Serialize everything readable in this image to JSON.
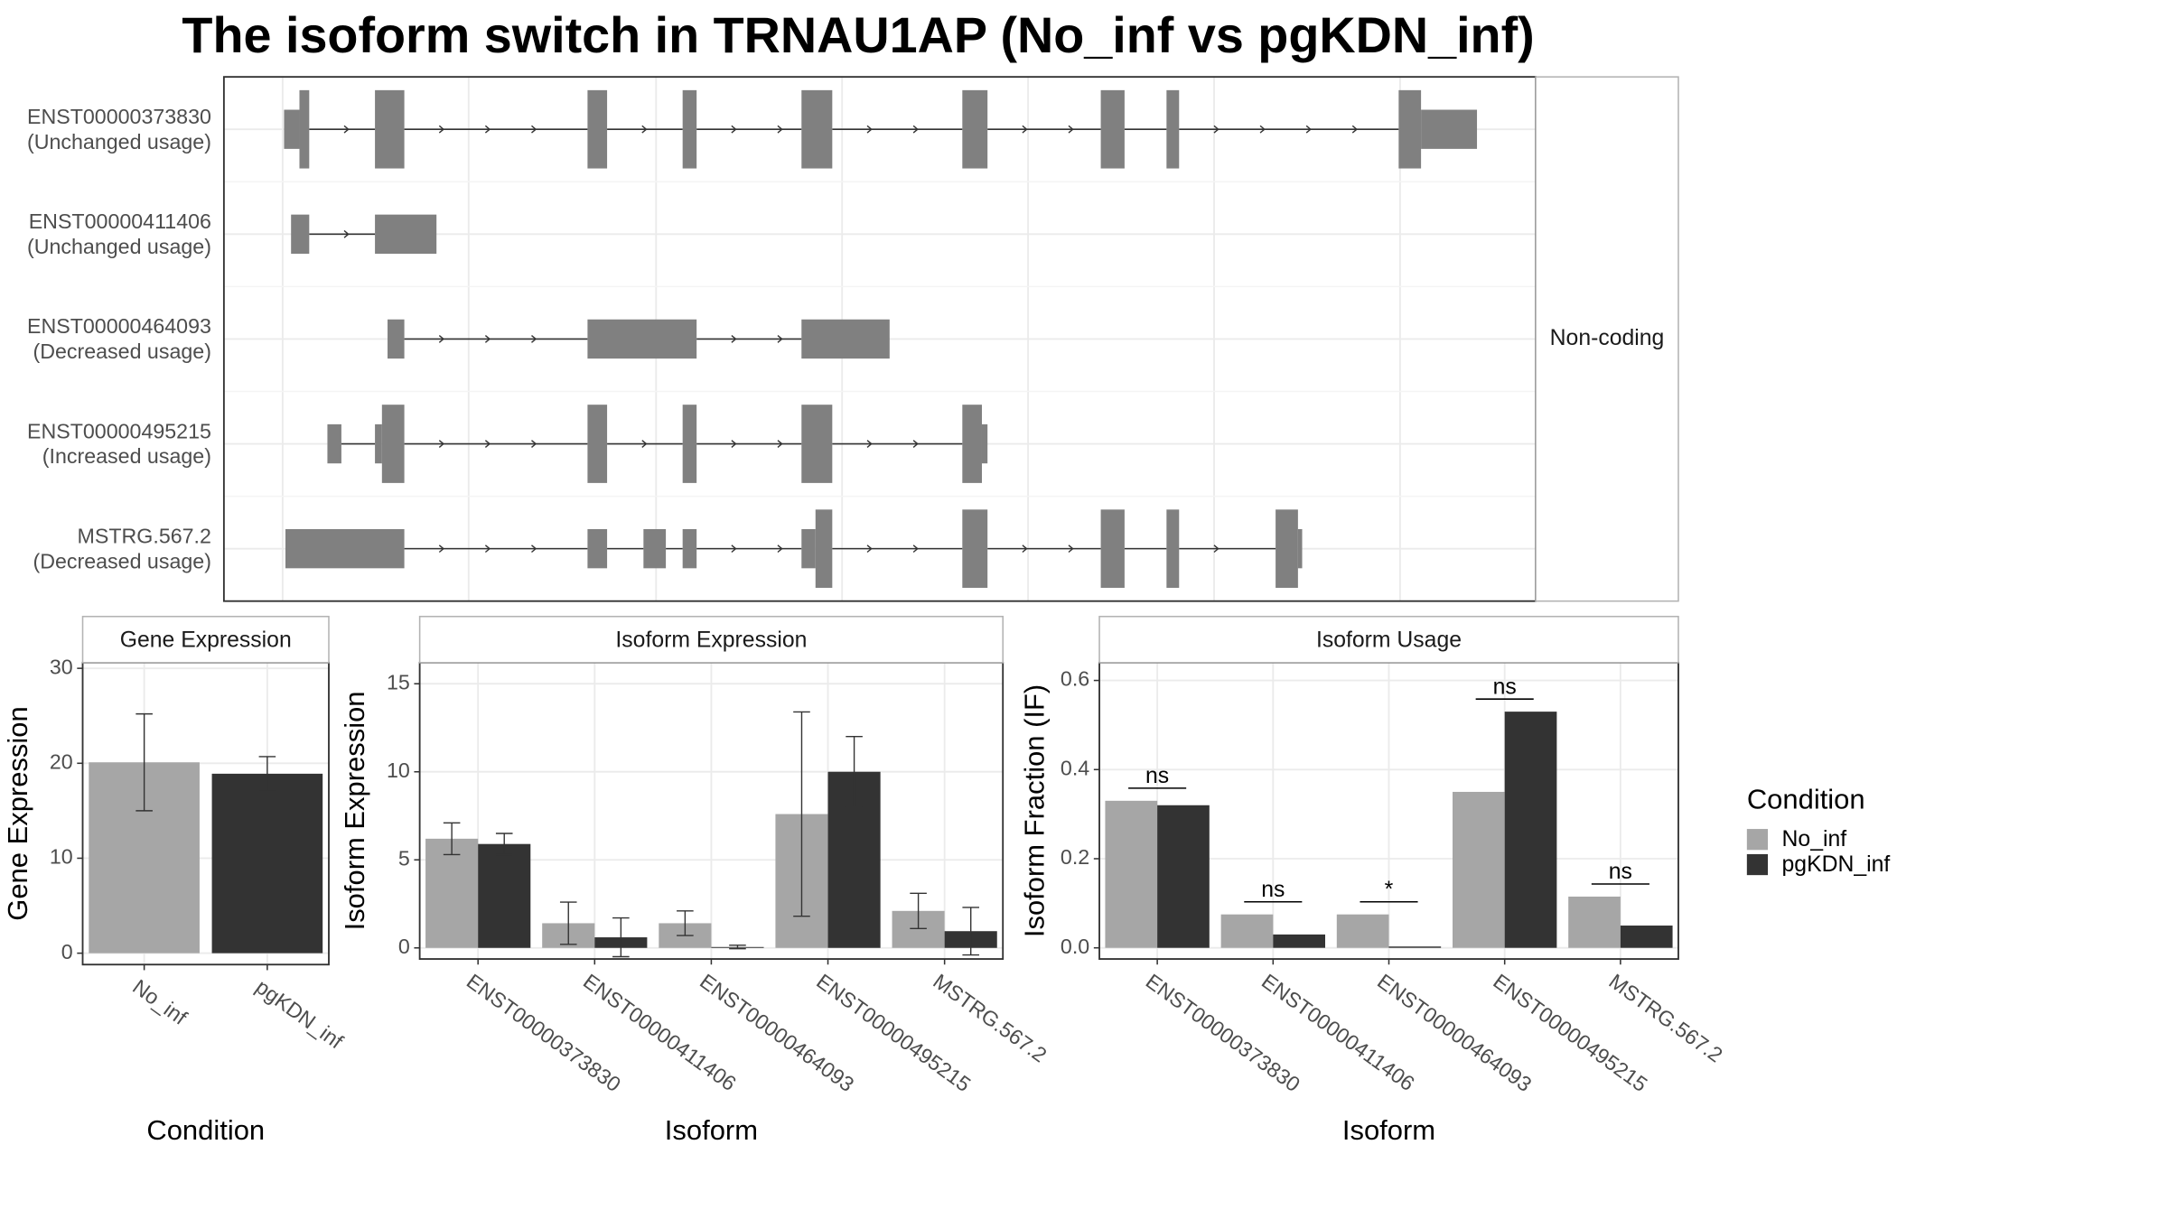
{
  "title": "The isoform switch in TRNAU1AP (No_inf vs pgKDN_inf)",
  "chart_data": [
    {
      "type": "transcripts",
      "strip": "Non-coding",
      "transcripts": [
        {
          "name": "ENST00000373830",
          "label": "(Unchanged usage)",
          "exons": [
            {
              "start": 43,
              "end": 54,
              "coding": false
            },
            {
              "start": 54,
              "end": 61,
              "coding": true
            },
            {
              "start": 108,
              "end": 129,
              "coding": true
            },
            {
              "start": 260,
              "end": 274,
              "coding": true
            },
            {
              "start": 328,
              "end": 338,
              "coding": true
            },
            {
              "start": 413,
              "end": 435,
              "coding": true
            },
            {
              "start": 528,
              "end": 546,
              "coding": true
            },
            {
              "start": 627,
              "end": 644,
              "coding": true
            },
            {
              "start": 674,
              "end": 683,
              "coding": true
            },
            {
              "start": 840,
              "end": 856,
              "coding": true
            },
            {
              "start": 856,
              "end": 896,
              "coding": false
            }
          ]
        },
        {
          "name": "ENST00000411406",
          "label": "(Unchanged usage)",
          "exons": [
            {
              "start": 48,
              "end": 61,
              "coding": false
            },
            {
              "start": 108,
              "end": 152,
              "coding": false
            }
          ]
        },
        {
          "name": "ENST00000464093",
          "label": "(Decreased usage)",
          "exons": [
            {
              "start": 117,
              "end": 129,
              "coding": false
            },
            {
              "start": 260,
              "end": 338,
              "coding": false
            },
            {
              "start": 413,
              "end": 476,
              "coding": false
            }
          ]
        },
        {
          "name": "ENST00000495215",
          "label": "(Increased usage)",
          "exons": [
            {
              "start": 74,
              "end": 84,
              "coding": false
            },
            {
              "start": 108,
              "end": 113,
              "coding": false
            },
            {
              "start": 113,
              "end": 129,
              "coding": true
            },
            {
              "start": 260,
              "end": 274,
              "coding": true
            },
            {
              "start": 328,
              "end": 338,
              "coding": true
            },
            {
              "start": 413,
              "end": 435,
              "coding": true
            },
            {
              "start": 528,
              "end": 542,
              "coding": true
            },
            {
              "start": 542,
              "end": 546,
              "coding": false
            }
          ]
        },
        {
          "name": "MSTRG.567.2",
          "label": "(Decreased usage)",
          "exons": [
            {
              "start": 44,
              "end": 129,
              "coding": false
            },
            {
              "start": 260,
              "end": 274,
              "coding": false
            },
            {
              "start": 300,
              "end": 316,
              "coding": false
            },
            {
              "start": 328,
              "end": 338,
              "coding": false
            },
            {
              "start": 413,
              "end": 423,
              "coding": false
            },
            {
              "start": 423,
              "end": 435,
              "coding": true
            },
            {
              "start": 528,
              "end": 546,
              "coding": true
            },
            {
              "start": 627,
              "end": 644,
              "coding": true
            },
            {
              "start": 674,
              "end": 683,
              "coding": true
            },
            {
              "start": 752,
              "end": 768,
              "coding": true
            },
            {
              "start": 768,
              "end": 771,
              "coding": false
            }
          ]
        }
      ]
    },
    {
      "type": "bar",
      "strip": "Gene Expression",
      "xlabel": "Condition",
      "ylabel": "Gene Expression",
      "categories": [
        "No_inf",
        "pgKDN_inf"
      ],
      "values": [
        20.1,
        18.9
      ],
      "errors": [
        5.1,
        1.8
      ],
      "colors": [
        "#a6a6a6",
        "#333333"
      ],
      "ylim": [
        -1.2,
        30.6
      ],
      "yticks": [
        0,
        10,
        20,
        30
      ],
      "grid": true
    },
    {
      "type": "bar",
      "strip": "Isoform Expression",
      "xlabel": "Isoform",
      "ylabel": "Isoform Expression",
      "categories": [
        "ENST00000373830",
        "ENST00000411406",
        "ENST00000464093",
        "ENST00000495215",
        "MSTRG.567.2"
      ],
      "series": [
        {
          "name": "No_inf",
          "color": "#a6a6a6",
          "values": [
            6.2,
            1.4,
            1.4,
            7.6,
            2.1
          ],
          "errors": [
            0.9,
            1.2,
            0.7,
            5.8,
            1.0
          ]
        },
        {
          "name": "pgKDN_inf",
          "color": "#333333",
          "values": [
            5.9,
            0.6,
            0.05,
            10.0,
            0.95
          ],
          "errors": [
            0.6,
            1.1,
            0.1,
            2.0,
            1.35
          ]
        }
      ],
      "ylim": [
        -0.63,
        16.2
      ],
      "yticks": [
        0,
        5,
        10,
        15
      ],
      "grid": true
    },
    {
      "type": "bar",
      "strip": "Isoform Usage",
      "xlabel": "Isoform",
      "ylabel": "Isoform Fraction (IF)",
      "categories": [
        "ENST00000373830",
        "ENST00000411406",
        "ENST00000464093",
        "ENST00000495215",
        "MSTRG.567.2"
      ],
      "series": [
        {
          "name": "No_inf",
          "color": "#a6a6a6",
          "values": [
            0.33,
            0.075,
            0.075,
            0.35,
            0.115
          ]
        },
        {
          "name": "pgKDN_inf",
          "color": "#333333",
          "values": [
            0.32,
            0.03,
            0.003,
            0.53,
            0.05
          ]
        }
      ],
      "significance": [
        "ns",
        "ns",
        "*",
        "ns",
        "ns"
      ],
      "ylim": [
        -0.025,
        0.64
      ],
      "yticks": [
        {
          "value": 0,
          "label": "0.0"
        },
        {
          "value": 0.2,
          "label": "0.2"
        },
        {
          "value": 0.4,
          "label": "0.4"
        },
        {
          "value": 0.6,
          "label": "0.6"
        }
      ],
      "grid": true,
      "legend_title": "Condition",
      "legend": "right"
    }
  ]
}
